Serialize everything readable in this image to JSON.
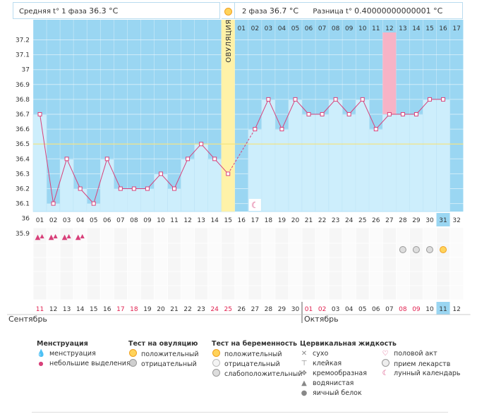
{
  "header": {
    "unit": "°C",
    "phase1": {
      "label": "Средняя t° 1 фаза",
      "value": "36.3 °C"
    },
    "phase2": {
      "label": "2 фаза",
      "value": "36.7 °C"
    },
    "difference": {
      "label": "Разница t°",
      "value": "0.40000000000001 °C"
    }
  },
  "chart_data": {
    "type": "line",
    "title": "",
    "xlabel": "",
    "ylabel": "°C",
    "ylim": [
      35.9,
      37.25
    ],
    "y_ticks": [
      "35.9",
      "36",
      "36.1",
      "36.2",
      "36.3",
      "36.4",
      "36.5",
      "36.6",
      "36.7",
      "36.8",
      "36.9",
      "37",
      "37.1",
      "37.2"
    ],
    "x_cycle_days": [
      "01",
      "02",
      "03",
      "04",
      "05",
      "06",
      "07",
      "08",
      "09",
      "10",
      "11",
      "12",
      "13",
      "14",
      "15",
      "16",
      "17",
      "18",
      "19",
      "20",
      "21",
      "22",
      "23",
      "24",
      "25",
      "26",
      "27",
      "28",
      "29",
      "30",
      "31",
      "32"
    ],
    "x_phase2_days": [
      "01",
      "02",
      "03",
      "04",
      "05",
      "06",
      "07",
      "08",
      "09",
      "10",
      "11",
      "12",
      "13",
      "14",
      "15",
      "16",
      "17"
    ],
    "temperatures": [
      36.7,
      36.1,
      36.4,
      36.2,
      36.1,
      36.4,
      36.2,
      36.2,
      36.2,
      36.3,
      36.2,
      36.4,
      36.5,
      36.4,
      36.3,
      null,
      36.6,
      36.8,
      36.6,
      36.8,
      36.7,
      36.7,
      36.8,
      36.7,
      36.8,
      36.6,
      36.7,
      36.7,
      36.7,
      36.8,
      36.8,
      null
    ],
    "coverline": 36.5,
    "ovulation_day": 15,
    "ovulation_label": "ОВУЛЯЦИЯ",
    "highlighted_phase2_day": 12,
    "current_day": 31,
    "calendar_dates": [
      "11",
      "12",
      "13",
      "14",
      "15",
      "16",
      "17",
      "18",
      "19",
      "20",
      "21",
      "22",
      "23",
      "24",
      "25",
      "26",
      "27",
      "28",
      "29",
      "30",
      "01",
      "02",
      "03",
      "04",
      "05",
      "06",
      "07",
      "08",
      "09",
      "10",
      "11",
      "12"
    ],
    "weekend_dates_idx": [
      0,
      6,
      7,
      13,
      14,
      20,
      21,
      27,
      28
    ],
    "month_left": "Сентябрь",
    "month_right": "Октябрь",
    "month_break_index": 20,
    "menstruation_days": [
      1,
      2,
      3,
      4
    ],
    "pregnancy_test_negative_days": [
      28,
      29,
      30
    ],
    "pregnancy_test_positive_days": [
      31
    ],
    "lunar_day": 17
  },
  "legend": {
    "menstruation": {
      "title": "Менструация",
      "items": [
        "менструация",
        "небольшие выделения"
      ]
    },
    "ovulation_test": {
      "title": "Тест на овуляцию",
      "items": [
        "положительный",
        "отрицательный"
      ]
    },
    "pregnancy_test": {
      "title": "Тест на беременность",
      "items": [
        "положительный",
        "отрицательный",
        "слабоположительный"
      ]
    },
    "cervical": {
      "title": "Цервикальная жидкость",
      "items": [
        "сухо",
        "клейкая",
        "кремообразная",
        "водянистая",
        "яичный белок"
      ]
    },
    "other": {
      "items": [
        "половой акт",
        "прием лекарств",
        "лунный календарь"
      ]
    }
  },
  "colors": {
    "plot_bg": "#9ad6f2",
    "bar_fill": "#cdeefc",
    "line": "#d8417a",
    "ovulation": "#fff2a8",
    "highlight": "#f7b3c6",
    "coverline": "#f3e27a",
    "current": "#9ad6f2"
  }
}
